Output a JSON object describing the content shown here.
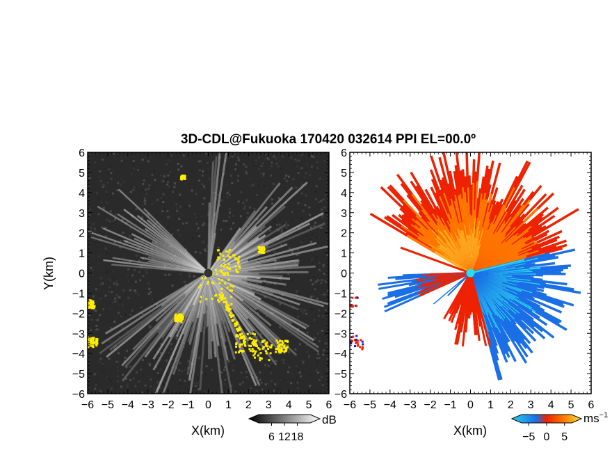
{
  "chart_data": {
    "type": "heatmap",
    "title": "3D-CDL@Fukuoka 170420 032614 PPI EL=00.0º",
    "panels": [
      {
        "name": "left",
        "field": "SNR",
        "xlabel": "X(km)",
        "ylabel": "Y(km)",
        "xlim": [
          -6,
          6
        ],
        "ylim": [
          -6,
          6
        ],
        "xticks": [
          -6,
          -5,
          -4,
          -3,
          -2,
          -1,
          0,
          1,
          2,
          3,
          4,
          5,
          6
        ],
        "yticks": [
          -6,
          -5,
          -4,
          -3,
          -2,
          -1,
          0,
          1,
          2,
          3,
          4,
          5,
          6
        ],
        "colorbar": {
          "unit": "dB",
          "ticks": [
            6,
            12,
            18
          ],
          "range": [
            0,
            24
          ]
        },
        "colors": {
          "background": "#2a2a2a",
          "high": "#f2f2f2",
          "overlay": "#ffee00",
          "center": "#333333"
        }
      },
      {
        "name": "right",
        "field": "Doppler velocity",
        "xlabel": "X(km)",
        "xlim": [
          -6,
          6
        ],
        "ylim": [
          -6,
          6
        ],
        "xticks": [
          -6,
          -5,
          -4,
          -3,
          -2,
          -1,
          0,
          1,
          2,
          3,
          4,
          5,
          6
        ],
        "yticks": [
          -6,
          -5,
          -4,
          -3,
          -2,
          -1,
          0,
          1,
          2,
          3,
          4,
          5,
          6
        ],
        "colorbar": {
          "unit": "ms",
          "unit_sup": "−1",
          "ticks": [
            -5,
            0,
            5
          ],
          "range": [
            -7,
            7
          ]
        },
        "colors": {
          "approach": "#1a6fe6",
          "light": "#2ad2f0",
          "recede": "#ff7a00",
          "strong": "#ee2200",
          "center": "#22e0f0",
          "edge": "#1a1acc"
        }
      }
    ]
  }
}
